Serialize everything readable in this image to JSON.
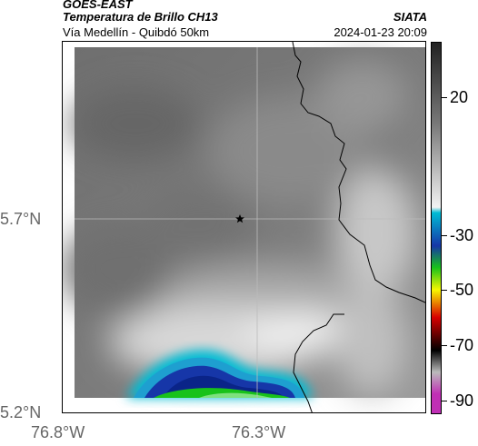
{
  "header": {
    "satellite": "GOES-EAST",
    "product": "Temperatura de Brillo CH13",
    "route": "Vía Medellín - Quibdó 50km",
    "agency": "SIATA",
    "timestamp": "2024-01-23 20:09"
  },
  "map": {
    "marker_icon": "star-icon",
    "latitude_labels": [
      "5.7°N",
      "5.2°N"
    ],
    "longitude_labels": [
      "76.8°W",
      "76.3°W"
    ]
  },
  "colorbar": {
    "tick_labels": [
      "20",
      "-30",
      "-50",
      "-70",
      "-90"
    ],
    "tick_values": [
      20,
      -30,
      -50,
      -70,
      -90
    ],
    "range": [
      40,
      -95
    ],
    "colors": {
      "warm_dark": "#222222",
      "mid_gray": "#7a7a7a",
      "light_gray": "#f2f2f2",
      "cyan": "#00bcd4",
      "blue": "#1636a8",
      "green": "#18c21a",
      "yellow": "#f7f700",
      "red": "#d80000",
      "black": "#000000",
      "magenta": "#c02fb5"
    }
  }
}
